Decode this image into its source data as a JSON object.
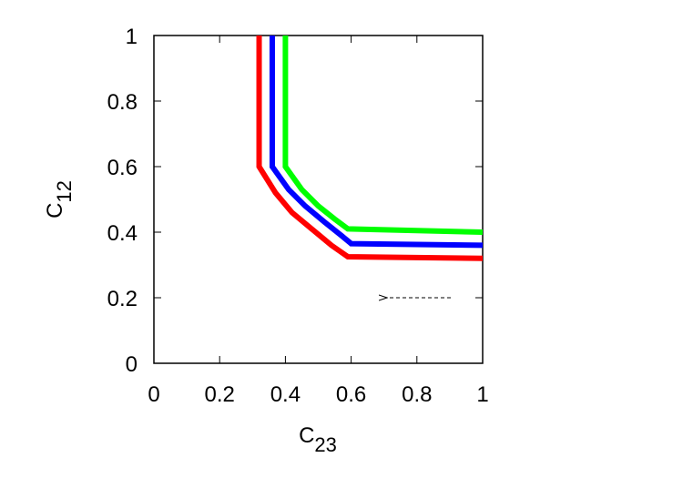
{
  "chart_data": {
    "type": "line",
    "xlabel": {
      "base": "C",
      "sub": "23"
    },
    "ylabel": {
      "base": "C",
      "sub": "12"
    },
    "xlim": [
      0,
      1
    ],
    "ylim": [
      0,
      1
    ],
    "xticks": [
      0,
      0.2,
      0.4,
      0.6,
      0.8,
      1
    ],
    "yticks": [
      0,
      0.2,
      0.4,
      0.6,
      0.8,
      1
    ],
    "series": [
      {
        "color": "#ff0000",
        "x": [
          0.32,
          0.32,
          0.37,
          0.42,
          0.48,
          0.54,
          0.59,
          1
        ],
        "values": [
          1,
          0.6,
          0.52,
          0.46,
          0.41,
          0.36,
          0.325,
          0.32
        ]
      },
      {
        "color": "#0000ff",
        "x": [
          0.36,
          0.36,
          0.41,
          0.46,
          0.52,
          0.57,
          0.6,
          1
        ],
        "values": [
          1,
          0.6,
          0.53,
          0.48,
          0.43,
          0.39,
          0.365,
          0.36
        ]
      },
      {
        "color": "#00ff00",
        "x": [
          0.4,
          0.4,
          0.45,
          0.5,
          0.55,
          0.59,
          1
        ],
        "values": [
          1,
          0.6,
          0.53,
          0.48,
          0.44,
          0.41,
          0.4
        ]
      }
    ]
  }
}
